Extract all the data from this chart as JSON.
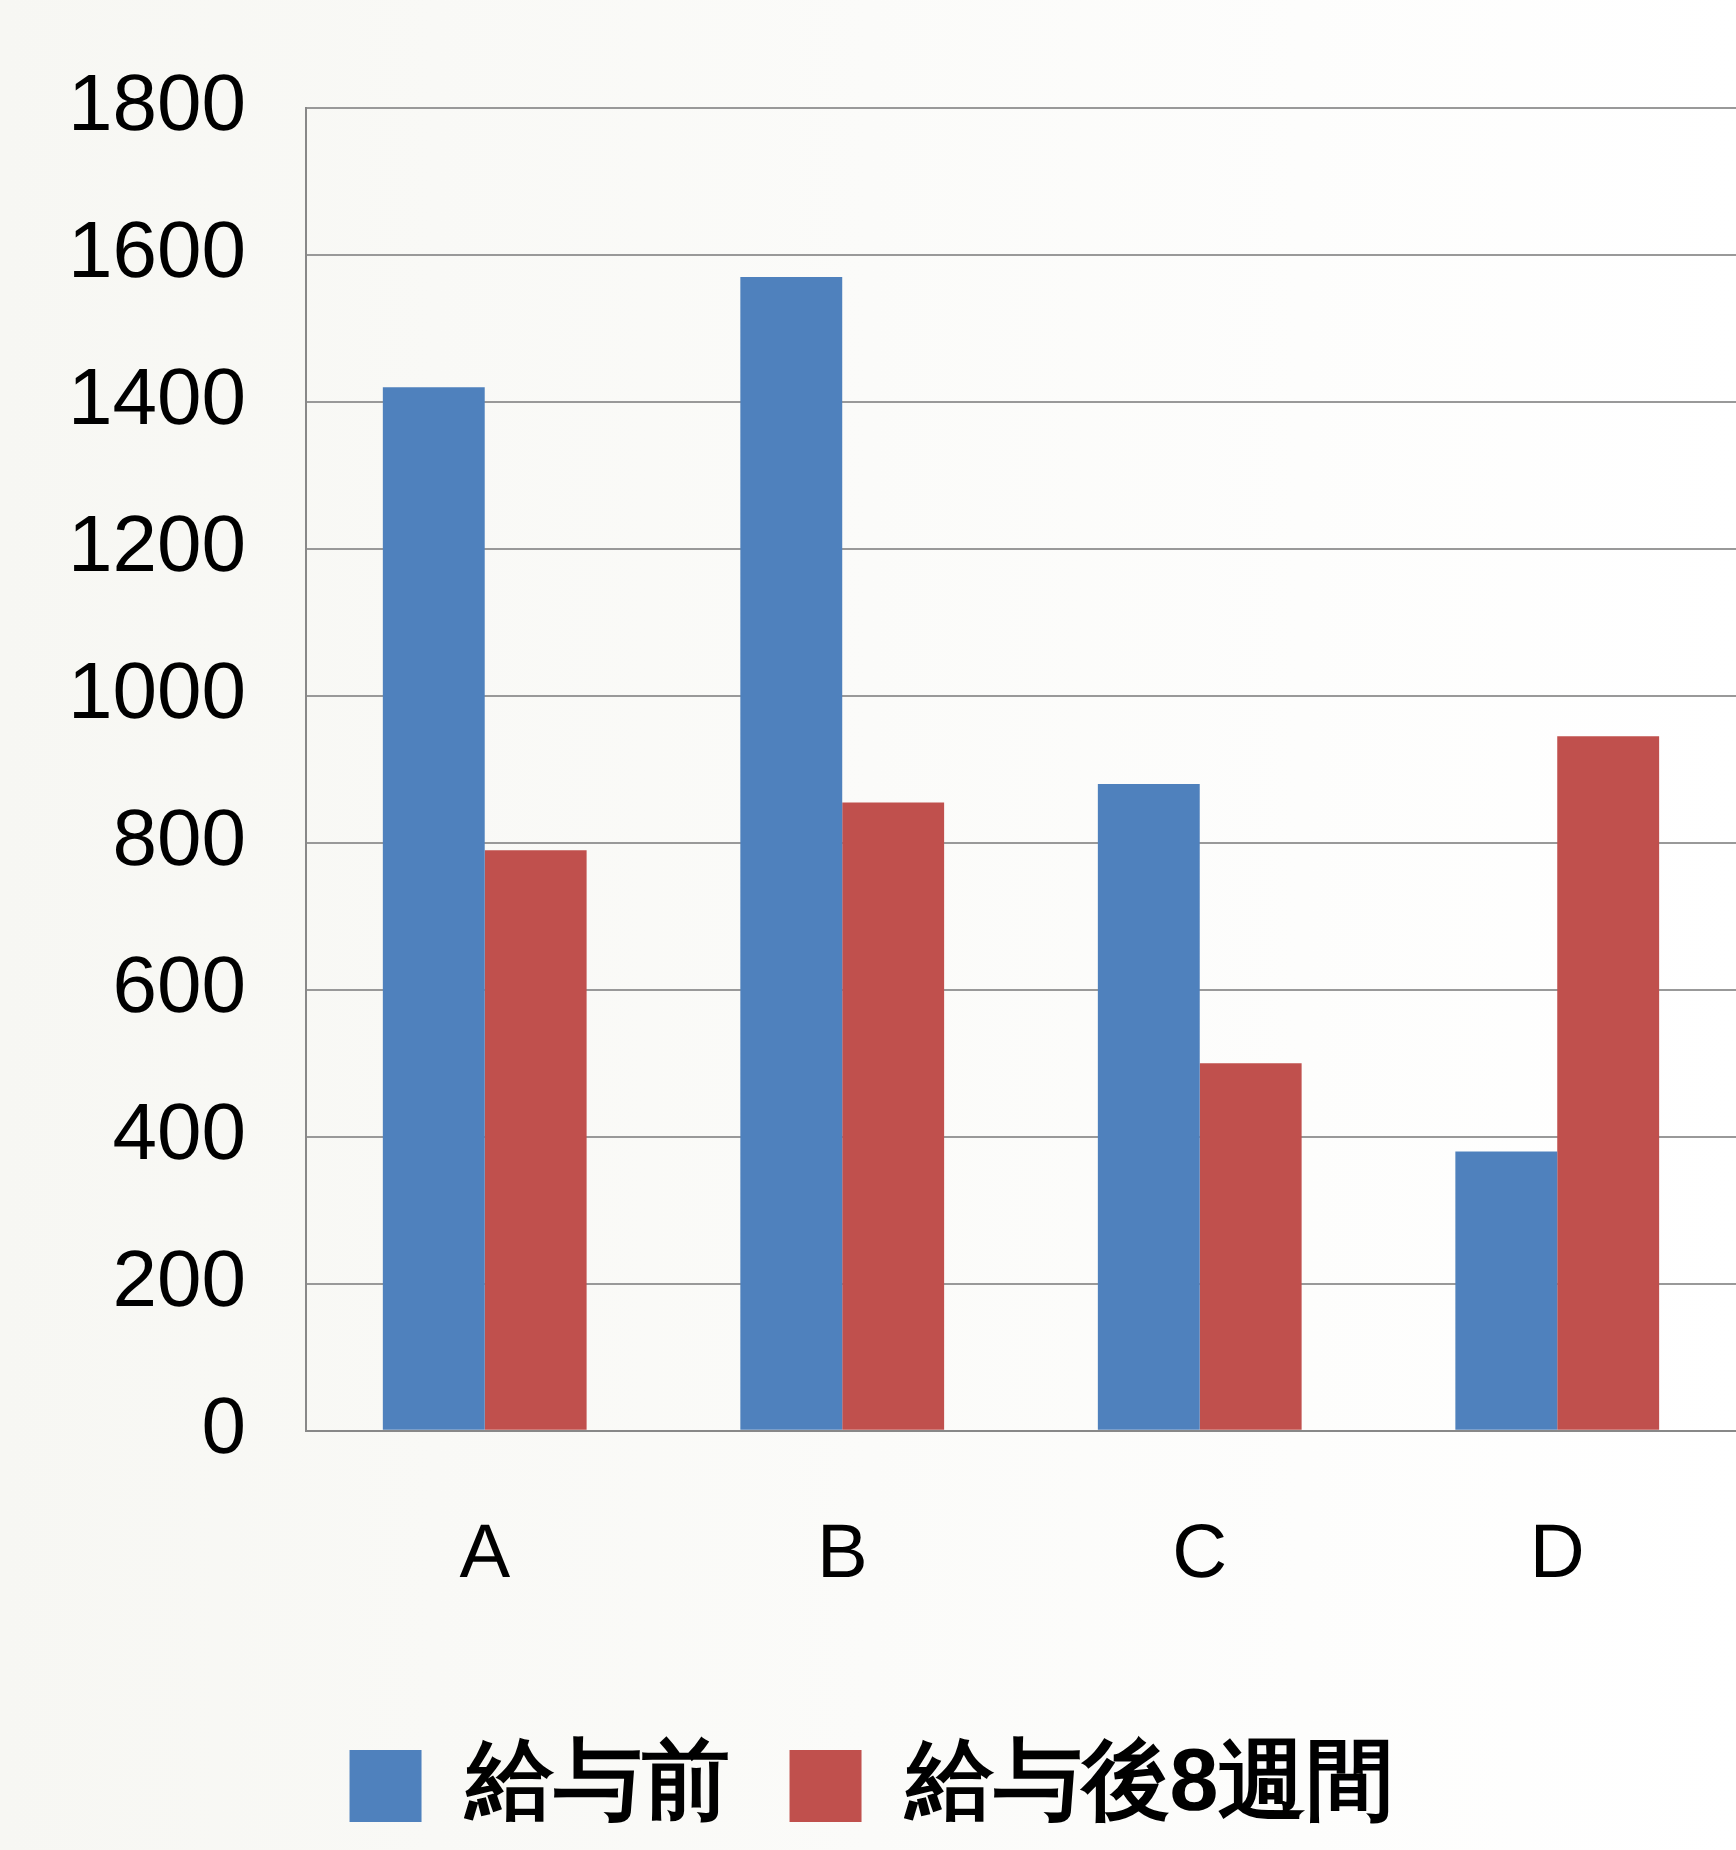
{
  "chart_data": {
    "type": "bar",
    "categories": [
      "A",
      "B",
      "C",
      "D"
    ],
    "series": [
      {
        "name": "給与前",
        "color": "#4f81bd",
        "values": [
          1420,
          1570,
          880,
          380
        ]
      },
      {
        "name": "給与後8週間",
        "color": "#c0504d",
        "values": [
          790,
          855,
          500,
          945
        ]
      }
    ],
    "ylim": [
      0,
      1800
    ],
    "yticks": [
      0,
      200,
      400,
      600,
      800,
      1000,
      1200,
      1400,
      1600,
      1800
    ],
    "grid": "y",
    "legend": "bottom"
  }
}
